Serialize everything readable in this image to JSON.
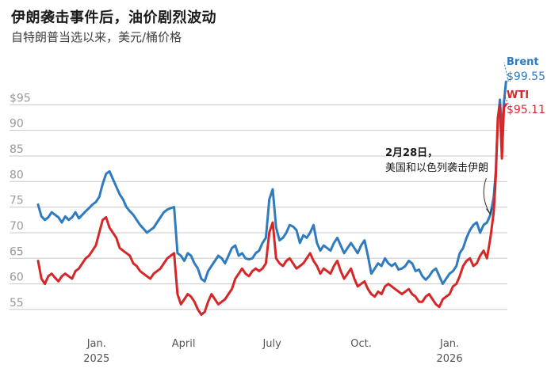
{
  "title": "伊朗袭击事件后，油价剧烈波动",
  "subtitle": "自特朗普当选以来，美元/桶价格",
  "chart_data": {
    "type": "line",
    "title": "伊朗袭击事件后，油价剧烈波动",
    "subtitle": "自特朗普当选以来，美元/桶价格",
    "xlabel": "",
    "ylabel": "",
    "ylim": [
      50.5,
      100
    ],
    "xlim": [
      0,
      69
    ],
    "yticks": [
      55,
      60,
      65,
      70,
      75,
      80,
      85,
      90,
      95
    ],
    "ytick_labels": [
      "55",
      "60",
      "65",
      "70",
      "75",
      "80",
      "85",
      "90",
      "$95"
    ],
    "xticks": [
      {
        "pos": 8.6,
        "label": "Jan.",
        "sub": "2025"
      },
      {
        "pos": 21.4,
        "label": "April",
        "sub": ""
      },
      {
        "pos": 34.4,
        "label": "July",
        "sub": ""
      },
      {
        "pos": 47.5,
        "label": "Oct.",
        "sub": ""
      },
      {
        "pos": 60.5,
        "label": "Jan.",
        "sub": "2026"
      }
    ],
    "grid": true,
    "x_unit": "weeks since early Nov. 2024",
    "series": [
      {
        "name": "Brent",
        "color": "#2e7bbf",
        "last_label": "$99.55",
        "x": [
          0,
          0.5,
          1,
          1.5,
          2,
          2.5,
          3,
          3.5,
          4,
          4.5,
          5,
          5.5,
          6,
          6.5,
          7,
          7.5,
          8,
          8.5,
          9,
          9.5,
          10,
          10.5,
          11,
          11.5,
          12,
          12.5,
          13,
          13.5,
          14,
          14.5,
          15,
          15.5,
          16,
          16.5,
          17,
          17.5,
          18,
          18.5,
          19,
          19.5,
          20,
          20.5,
          21,
          21.5,
          22,
          22.5,
          23,
          23.5,
          24,
          24.5,
          25,
          25.5,
          26,
          26.5,
          27,
          27.5,
          28,
          28.5,
          29,
          29.5,
          30,
          30.5,
          31,
          31.5,
          32,
          32.5,
          33,
          33.5,
          34,
          34.5,
          35,
          35.5,
          36,
          36.5,
          37,
          37.5,
          38,
          38.5,
          39,
          39.5,
          40,
          40.5,
          41,
          41.5,
          42,
          42.5,
          43,
          43.5,
          44,
          44.5,
          45,
          45.5,
          46,
          46.5,
          47,
          47.5,
          48,
          48.5,
          49,
          49.5,
          50,
          50.5,
          51,
          51.5,
          52,
          52.5,
          53,
          53.5,
          54,
          54.5,
          55,
          55.5,
          56,
          56.5,
          57,
          57.5,
          58,
          58.5,
          59,
          59.5,
          60,
          60.5,
          61,
          61.5,
          62,
          62.5,
          63,
          63.5,
          64,
          64.5,
          65,
          65.5,
          66,
          66.5,
          67,
          67.3,
          67.6,
          67.9,
          68.2,
          68.5,
          68.8
        ],
        "values": [
          75.5,
          73.2,
          72.5,
          73.0,
          74.0,
          73.5,
          73.0,
          72.0,
          73.2,
          72.5,
          73.0,
          74.0,
          72.8,
          73.5,
          74.2,
          74.8,
          75.5,
          76.0,
          77.0,
          79.5,
          81.5,
          82.0,
          80.5,
          79.0,
          77.5,
          76.5,
          75.0,
          74.2,
          73.5,
          72.5,
          71.5,
          70.8,
          70.0,
          70.5,
          71.0,
          72.0,
          73.0,
          74.0,
          74.5,
          74.8,
          75.0,
          66.0,
          65.5,
          64.5,
          66.0,
          65.5,
          64.0,
          63.0,
          61.0,
          60.5,
          62.5,
          63.5,
          64.5,
          65.5,
          65.0,
          64.0,
          65.5,
          67.0,
          67.5,
          65.5,
          66.0,
          65.0,
          64.8,
          65.0,
          66.0,
          66.5,
          68.0,
          69.0,
          76.5,
          78.5,
          71.0,
          68.5,
          69.0,
          70.0,
          71.5,
          71.2,
          70.5,
          68.0,
          69.5,
          69.0,
          70.0,
          71.5,
          68.0,
          66.5,
          67.5,
          67.0,
          66.5,
          68.0,
          69.0,
          67.5,
          66.0,
          67.0,
          68.0,
          67.0,
          66.0,
          67.5,
          68.5,
          65.5,
          62.0,
          63.0,
          64.0,
          63.5,
          65.0,
          64.0,
          63.5,
          64.0,
          62.8,
          63.0,
          63.5,
          64.5,
          64.0,
          62.5,
          62.8,
          61.5,
          60.8,
          61.5,
          62.5,
          63.0,
          61.5,
          60.0,
          61.0,
          62.0,
          62.5,
          63.5,
          66.0,
          67.0,
          69.0,
          70.5,
          71.5,
          72.0,
          70.0,
          71.5,
          72.0,
          73.5,
          77.0,
          82.0,
          92.0,
          96.0,
          89.5,
          95.5,
          99.5
        ]
      },
      {
        "name": "WTI",
        "color": "#d62728",
        "last_label": "$95.11",
        "x": [
          0,
          0.5,
          1,
          1.5,
          2,
          2.5,
          3,
          3.5,
          4,
          4.5,
          5,
          5.5,
          6,
          6.5,
          7,
          7.5,
          8,
          8.5,
          9,
          9.5,
          10,
          10.5,
          11,
          11.5,
          12,
          12.5,
          13,
          13.5,
          14,
          14.5,
          15,
          15.5,
          16,
          16.5,
          17,
          17.5,
          18,
          18.5,
          19,
          19.5,
          20,
          20.5,
          21,
          21.5,
          22,
          22.5,
          23,
          23.5,
          24,
          24.5,
          25,
          25.5,
          26,
          26.5,
          27,
          27.5,
          28,
          28.5,
          29,
          29.5,
          30,
          30.5,
          31,
          31.5,
          32,
          32.5,
          33,
          33.5,
          34,
          34.5,
          35,
          35.5,
          36,
          36.5,
          37,
          37.5,
          38,
          38.5,
          39,
          39.5,
          40,
          40.5,
          41,
          41.5,
          42,
          42.5,
          43,
          43.5,
          44,
          44.5,
          45,
          45.5,
          46,
          46.5,
          47,
          47.5,
          48,
          48.5,
          49,
          49.5,
          50,
          50.5,
          51,
          51.5,
          52,
          52.5,
          53,
          53.5,
          54,
          54.5,
          55,
          55.5,
          56,
          56.5,
          57,
          57.5,
          58,
          58.5,
          59,
          59.5,
          60,
          60.5,
          61,
          61.5,
          62,
          62.5,
          63,
          63.5,
          64,
          64.5,
          65,
          65.5,
          66,
          66.5,
          67,
          67.3,
          67.6,
          67.9,
          68.2,
          68.5,
          68.8
        ],
        "values": [
          64.5,
          61.0,
          60.0,
          61.5,
          62.0,
          61.2,
          60.5,
          61.5,
          62.0,
          61.5,
          61.0,
          62.5,
          63.0,
          64.0,
          65.0,
          65.5,
          66.5,
          67.5,
          70.0,
          72.5,
          73.0,
          71.0,
          70.0,
          69.0,
          67.0,
          66.5,
          66.0,
          65.5,
          64.0,
          63.5,
          62.5,
          62.0,
          61.5,
          61.0,
          62.0,
          62.5,
          63.0,
          64.0,
          65.0,
          65.5,
          66.0,
          58.0,
          56.0,
          57.0,
          58.0,
          57.5,
          56.5,
          55.0,
          54.0,
          54.5,
          56.5,
          58.0,
          57.0,
          56.0,
          56.5,
          57.0,
          58.0,
          59.0,
          61.0,
          62.0,
          63.0,
          62.0,
          61.5,
          62.5,
          63.0,
          62.5,
          63.0,
          64.0,
          70.0,
          72.0,
          65.0,
          64.0,
          63.5,
          64.5,
          65.0,
          64.0,
          63.0,
          63.5,
          64.0,
          65.0,
          66.0,
          64.5,
          63.5,
          62.0,
          63.0,
          62.5,
          62.0,
          63.5,
          64.5,
          62.5,
          61.0,
          62.0,
          63.0,
          61.0,
          59.5,
          60.0,
          60.5,
          59.0,
          58.0,
          57.5,
          58.5,
          58.0,
          59.5,
          60.0,
          59.5,
          59.0,
          58.5,
          58.0,
          58.5,
          59.0,
          58.0,
          57.5,
          56.5,
          56.5,
          57.5,
          58.0,
          57.0,
          56.0,
          55.5,
          57.0,
          57.5,
          58.0,
          59.5,
          60.0,
          61.5,
          63.5,
          64.5,
          65.0,
          63.5,
          64.0,
          65.5,
          66.5,
          65.0,
          69.0,
          74.0,
          81.0,
          92.5,
          95.0,
          84.5,
          94.5,
          95.1
        ]
      }
    ],
    "annotation": {
      "x": 66.6,
      "y": 73.0,
      "bold": "2月28日，",
      "text": "美国和以色列袭击伊朗"
    }
  }
}
